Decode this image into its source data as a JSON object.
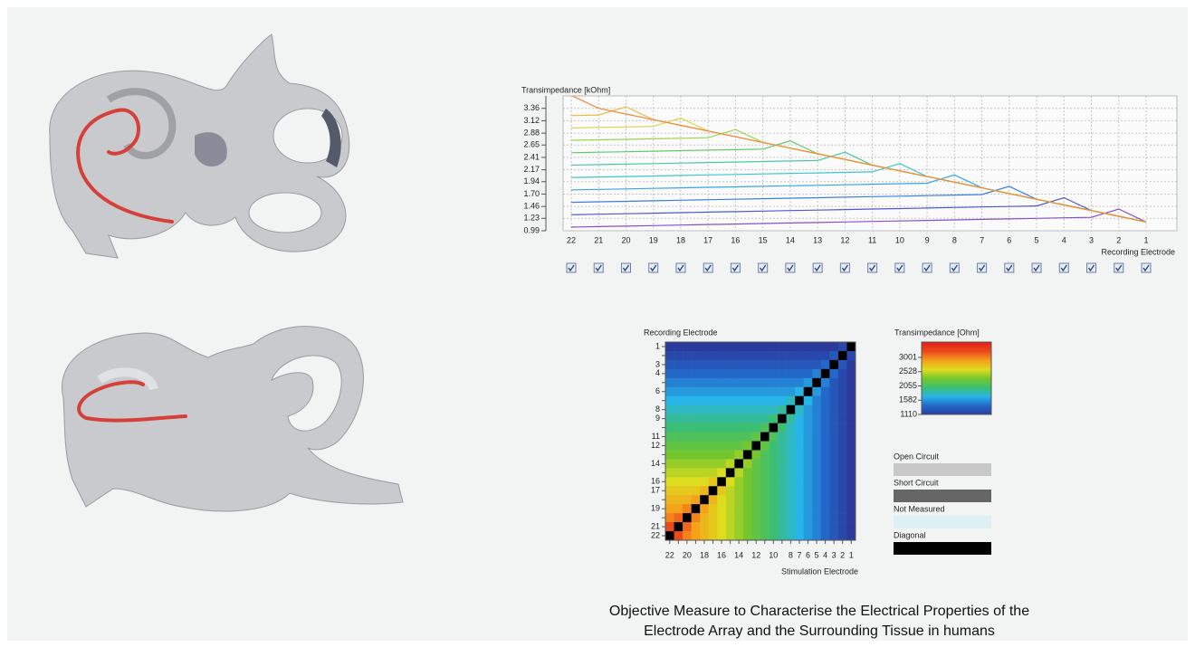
{
  "chart_data": [
    {
      "type": "line",
      "y_label": "Transimpedance [kOhm]",
      "x_label": "Recording Electrode",
      "categories": [
        "22",
        "21",
        "20",
        "19",
        "18",
        "17",
        "16",
        "15",
        "14",
        "13",
        "12",
        "11",
        "10",
        "9",
        "8",
        "7",
        "6",
        "5",
        "4",
        "3",
        "2",
        "1"
      ],
      "ylim": [
        0.99,
        3.6
      ],
      "yticks": [
        0.99,
        1.23,
        1.46,
        {
          "value": 1.7,
          "label": "1.70"
        },
        1.94,
        2.17,
        2.41,
        2.65,
        2.88,
        3.12,
        3.36
      ],
      "grid": true,
      "series": [
        {
          "color": "#8a4fc7",
          "values": [
            1.06,
            1.07,
            1.08,
            1.09,
            1.1,
            1.11,
            1.12,
            1.13,
            1.14,
            1.15,
            1.16,
            1.17,
            1.18,
            1.19,
            1.2,
            1.21,
            1.22,
            1.23,
            1.24,
            1.25,
            1.41,
            1.16
          ]
        },
        {
          "color": "#4a5bd0",
          "values": [
            1.3,
            1.31,
            1.32,
            1.33,
            1.34,
            1.35,
            1.36,
            1.37,
            1.38,
            1.39,
            1.4,
            1.41,
            1.42,
            1.43,
            1.44,
            1.45,
            1.46,
            1.47,
            1.63,
            1.38,
            1.27,
            1.16
          ]
        },
        {
          "color": "#3b7fe0",
          "values": [
            1.54,
            1.55,
            1.56,
            1.57,
            1.58,
            1.59,
            1.6,
            1.61,
            1.62,
            1.63,
            1.64,
            1.65,
            1.66,
            1.67,
            1.68,
            1.69,
            1.85,
            1.6,
            1.49,
            1.38,
            1.27,
            1.16
          ]
        },
        {
          "color": "#3aa6e0",
          "values": [
            1.78,
            1.79,
            1.8,
            1.81,
            1.82,
            1.83,
            1.84,
            1.85,
            1.86,
            1.87,
            1.88,
            1.89,
            1.9,
            1.91,
            2.07,
            1.82,
            1.71,
            1.6,
            1.49,
            1.38,
            1.27,
            1.16
          ]
        },
        {
          "color": "#3cc6d0",
          "values": [
            2.02,
            2.03,
            2.04,
            2.05,
            2.06,
            2.07,
            2.08,
            2.09,
            2.1,
            2.11,
            2.12,
            2.13,
            2.29,
            2.04,
            1.93,
            1.82,
            1.71,
            1.6,
            1.49,
            1.38,
            1.27,
            1.16
          ]
        },
        {
          "color": "#4cc9a0",
          "values": [
            2.26,
            2.27,
            2.28,
            2.29,
            2.3,
            2.31,
            2.32,
            2.33,
            2.34,
            2.35,
            2.51,
            2.26,
            2.15,
            2.04,
            1.93,
            1.82,
            1.71,
            1.6,
            1.49,
            1.38,
            1.27,
            1.16
          ]
        },
        {
          "color": "#62c962",
          "values": [
            2.5,
            2.51,
            2.52,
            2.53,
            2.54,
            2.55,
            2.56,
            2.57,
            2.73,
            2.48,
            2.37,
            2.26,
            2.15,
            2.04,
            1.93,
            1.82,
            1.71,
            1.6,
            1.49,
            1.38,
            1.27,
            1.16
          ]
        },
        {
          "color": "#9bd44f",
          "values": [
            2.74,
            2.75,
            2.76,
            2.77,
            2.78,
            2.79,
            2.95,
            2.7,
            2.59,
            2.48,
            2.37,
            2.26,
            2.15,
            2.04,
            1.93,
            1.82,
            1.71,
            1.6,
            1.49,
            1.38,
            1.27,
            1.16
          ]
        },
        {
          "color": "#d7d64a",
          "values": [
            2.98,
            2.99,
            3.0,
            3.01,
            3.17,
            2.92,
            2.81,
            2.7,
            2.59,
            2.48,
            2.37,
            2.26,
            2.15,
            2.04,
            1.93,
            1.82,
            1.71,
            1.6,
            1.49,
            1.38,
            1.27,
            1.16
          ]
        },
        {
          "color": "#f0b84a",
          "values": [
            3.22,
            3.23,
            3.39,
            3.14,
            3.03,
            2.92,
            2.81,
            2.7,
            2.59,
            2.48,
            2.37,
            2.26,
            2.15,
            2.04,
            1.93,
            1.82,
            1.71,
            1.6,
            1.49,
            1.38,
            1.27,
            1.16
          ]
        },
        {
          "color": "#f08a3a",
          "values": [
            3.61,
            3.36,
            3.25,
            3.14,
            3.03,
            2.92,
            2.81,
            2.7,
            2.59,
            2.48,
            2.37,
            2.26,
            2.15,
            2.04,
            1.93,
            1.82,
            1.71,
            1.6,
            1.49,
            1.38,
            1.27,
            1.16
          ]
        }
      ]
    },
    {
      "type": "heatmap",
      "y_label": "Recording Electrode",
      "x_label": "Stimulation Electrode",
      "categories": [
        "22",
        null,
        "20",
        null,
        "18",
        null,
        "16",
        null,
        "14",
        null,
        "12",
        null,
        "10",
        null,
        "8",
        "7",
        "6",
        "5",
        "4",
        "3",
        "2",
        "1"
      ],
      "y_categories": [
        "1",
        null,
        "3",
        "4",
        null,
        "6",
        null,
        "8",
        "9",
        null,
        "11",
        "12",
        null,
        "14",
        null,
        "16",
        "17",
        null,
        "19",
        null,
        "21",
        "22"
      ],
      "colorbar_title": "Transimpedance [Ohm]",
      "zlim": [
        1110,
        3510
      ],
      "zticks": [
        1110,
        1582,
        2055,
        2528,
        3001
      ],
      "colormap": [
        "#2b3a9c",
        "#2367c8",
        "#27b4e8",
        "#3cbf73",
        "#74c62e",
        "#dedc1f",
        "#f5a11a",
        "#ec4a1c",
        "#e3201b"
      ],
      "status_legend": [
        {
          "name": "Open Circuit",
          "color": "#c8c8c8"
        },
        {
          "name": "Short Circuit",
          "color": "#666666"
        },
        {
          "name": "Not Measured",
          "color": "#dff0f5"
        },
        {
          "name": "Diagonal",
          "color": "#000000"
        }
      ],
      "z": [
        [
          1110,
          1110,
          1110,
          1110,
          1110,
          1110,
          1110,
          1110,
          1110,
          1110,
          1110,
          1110,
          1110,
          1110,
          1110,
          1110,
          1110,
          1110,
          1110,
          1110,
          1210,
          null
        ],
        [
          1210,
          1210,
          1210,
          1210,
          1210,
          1210,
          1210,
          1210,
          1210,
          1210,
          1210,
          1210,
          1210,
          1210,
          1210,
          1210,
          1210,
          1210,
          1210,
          1310,
          null,
          1210
        ],
        [
          1310,
          1310,
          1310,
          1310,
          1310,
          1310,
          1310,
          1310,
          1310,
          1310,
          1310,
          1310,
          1310,
          1310,
          1310,
          1310,
          1310,
          1310,
          1410,
          null,
          1310,
          1110
        ],
        [
          1410,
          1410,
          1410,
          1410,
          1410,
          1410,
          1410,
          1410,
          1410,
          1410,
          1410,
          1410,
          1410,
          1410,
          1410,
          1410,
          1410,
          1510,
          null,
          1410,
          1210,
          1110
        ],
        [
          1510,
          1510,
          1510,
          1510,
          1510,
          1510,
          1510,
          1510,
          1510,
          1510,
          1510,
          1510,
          1510,
          1510,
          1510,
          1510,
          1610,
          null,
          1510,
          1310,
          1210,
          1110
        ],
        [
          1610,
          1610,
          1610,
          1610,
          1610,
          1610,
          1610,
          1610,
          1610,
          1610,
          1610,
          1610,
          1610,
          1610,
          1610,
          1710,
          null,
          1610,
          1410,
          1310,
          1210,
          1110
        ],
        [
          1710,
          1710,
          1710,
          1710,
          1710,
          1710,
          1710,
          1710,
          1710,
          1710,
          1710,
          1710,
          1710,
          1710,
          1810,
          null,
          1710,
          1510,
          1410,
          1310,
          1210,
          1110
        ],
        [
          1810,
          1810,
          1810,
          1810,
          1810,
          1810,
          1810,
          1810,
          1810,
          1810,
          1810,
          1810,
          1810,
          1910,
          null,
          1810,
          1610,
          1510,
          1410,
          1310,
          1210,
          1110
        ],
        [
          1910,
          1910,
          1910,
          1910,
          1910,
          1910,
          1910,
          1910,
          1910,
          1910,
          1910,
          1910,
          2010,
          null,
          1910,
          1710,
          1610,
          1510,
          1410,
          1310,
          1210,
          1110
        ],
        [
          2010,
          2010,
          2010,
          2010,
          2010,
          2010,
          2010,
          2010,
          2010,
          2010,
          2010,
          2110,
          null,
          2010,
          1810,
          1710,
          1610,
          1510,
          1410,
          1310,
          1210,
          1110
        ],
        [
          2110,
          2110,
          2110,
          2110,
          2110,
          2110,
          2110,
          2110,
          2110,
          2110,
          2210,
          null,
          2110,
          1910,
          1810,
          1710,
          1610,
          1510,
          1410,
          1310,
          1210,
          1110
        ],
        [
          2210,
          2210,
          2210,
          2210,
          2210,
          2210,
          2210,
          2210,
          2210,
          2310,
          null,
          2210,
          2010,
          1910,
          1810,
          1710,
          1610,
          1510,
          1410,
          1310,
          1210,
          1110
        ],
        [
          2310,
          2310,
          2310,
          2310,
          2310,
          2310,
          2310,
          2310,
          2410,
          null,
          2310,
          2110,
          2010,
          1910,
          1810,
          1710,
          1610,
          1510,
          1410,
          1310,
          1210,
          1110
        ],
        [
          2410,
          2410,
          2410,
          2410,
          2410,
          2410,
          2410,
          2510,
          null,
          2410,
          2210,
          2110,
          2010,
          1910,
          1810,
          1710,
          1610,
          1510,
          1410,
          1310,
          1210,
          1110
        ],
        [
          2510,
          2510,
          2510,
          2510,
          2510,
          2510,
          2610,
          null,
          2510,
          2310,
          2210,
          2110,
          2010,
          1910,
          1810,
          1710,
          1610,
          1510,
          1410,
          1310,
          1210,
          1110
        ],
        [
          2610,
          2610,
          2610,
          2610,
          2610,
          2710,
          null,
          2610,
          2410,
          2310,
          2210,
          2110,
          2010,
          1910,
          1810,
          1710,
          1610,
          1510,
          1410,
          1310,
          1210,
          1110
        ],
        [
          2710,
          2710,
          2710,
          2710,
          2810,
          null,
          2710,
          2510,
          2410,
          2310,
          2210,
          2110,
          2010,
          1910,
          1810,
          1710,
          1610,
          1510,
          1410,
          1310,
          1210,
          1110
        ],
        [
          2810,
          2810,
          2810,
          2910,
          null,
          2810,
          2610,
          2510,
          2410,
          2310,
          2210,
          2110,
          2010,
          1910,
          1810,
          1710,
          1610,
          1510,
          1410,
          1310,
          1210,
          1110
        ],
        [
          2910,
          2910,
          3010,
          null,
          2910,
          2710,
          2610,
          2510,
          2410,
          2310,
          2210,
          2110,
          2010,
          1910,
          1810,
          1710,
          1610,
          1510,
          1410,
          1310,
          1210,
          1110
        ],
        [
          3010,
          3110,
          null,
          3010,
          2810,
          2710,
          2610,
          2510,
          2410,
          2310,
          2210,
          2110,
          2010,
          1910,
          1810,
          1710,
          1610,
          1510,
          1410,
          1310,
          1210,
          1110
        ],
        [
          3210,
          null,
          3110,
          2910,
          2810,
          2710,
          2610,
          2510,
          2410,
          2310,
          2210,
          2110,
          2010,
          1910,
          1810,
          1710,
          1610,
          1510,
          1410,
          1310,
          1210,
          1110
        ],
        [
          null,
          3210,
          3010,
          2910,
          2810,
          2710,
          2610,
          2510,
          2410,
          2310,
          2210,
          2110,
          2010,
          1910,
          1810,
          1710,
          1610,
          1510,
          1410,
          1310,
          1210,
          1110
        ]
      ]
    }
  ],
  "caption": [
    "Objective Measure to Characterise the Electrical Properties of the",
    "Electrode Array and the Surrounding Tissue in humans"
  ]
}
